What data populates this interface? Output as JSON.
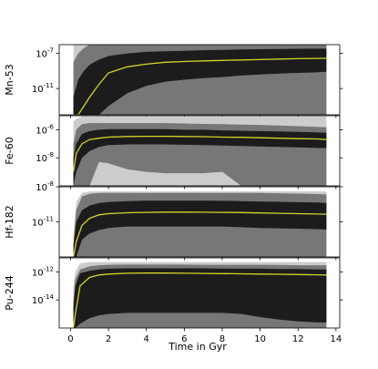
{
  "figure": {
    "xlabel": "Time in Gyr",
    "x_ticks": [
      "0",
      "2",
      "4",
      "6",
      "8",
      "10",
      "12",
      "14"
    ]
  },
  "colors": {
    "band_outer": "#cccccc",
    "band_mid": "#777777",
    "band_inner": "#1c1c1c",
    "median": "#d4d42a"
  },
  "chart_data": [
    {
      "type": "area",
      "title": "",
      "ylabel": "Mn-53",
      "yscale": "log",
      "ylim": [
        1e-14,
        1e-06
      ],
      "xlim": [
        -0.6,
        14.2
      ],
      "y_tick_labels": [
        "10^-7",
        "10^-11"
      ],
      "x": [
        0.15,
        0.4,
        0.7,
        1,
        1.5,
        2,
        3,
        4,
        5,
        6,
        7,
        8,
        9,
        10,
        11,
        12,
        13,
        13.5
      ],
      "series": [
        {
          "band": "outer",
          "lower": [
            1e-14,
            1e-14,
            1e-14,
            1e-14,
            1e-14,
            1e-14,
            1e-14,
            1e-14,
            1e-14,
            1e-14,
            1e-14,
            1e-14,
            1e-14,
            1e-14,
            1e-14,
            1e-14,
            1e-14,
            1e-14
          ],
          "upper": [
            3e-06,
            3e-06,
            3e-06,
            3e-06,
            3e-06,
            3e-06,
            3e-06,
            3e-06,
            3e-06,
            3e-06,
            3e-06,
            3e-06,
            3e-06,
            3e-06,
            3e-06,
            3e-06,
            3e-06,
            3e-06
          ]
        },
        {
          "band": "mid",
          "lower": [
            1e-14,
            1e-14,
            1e-14,
            1e-14,
            1e-14,
            1e-14,
            1e-14,
            1e-14,
            1e-14,
            1e-14,
            1e-14,
            1e-14,
            1e-14,
            1e-14,
            1e-14,
            1e-14,
            1e-14,
            1e-14
          ],
          "upper": [
            1e-08,
            1e-07,
            4e-07,
            1e-06,
            2e-06,
            2.5e-06,
            3e-06,
            3e-06,
            3e-06,
            3e-06,
            3e-06,
            3e-06,
            3e-06,
            3e-06,
            3e-06,
            3e-06,
            3e-06,
            3e-06
          ]
        },
        {
          "band": "inner",
          "lower": [
            1e-14,
            1e-14,
            1e-14,
            1e-14,
            1e-14,
            1e-13,
            3e-12,
            2e-11,
            6e-11,
            1e-10,
            1.5e-10,
            2e-10,
            3e-10,
            4e-10,
            5e-10,
            6e-10,
            7e-10,
            8e-10
          ],
          "upper": [
            1e-12,
            1e-10,
            1e-09,
            5e-09,
            2e-08,
            5e-08,
            1e-07,
            1.5e-07,
            1.8e-07,
            2e-07,
            2.3e-07,
            2.5e-07,
            2.8e-07,
            3e-07,
            3.2e-07,
            3.4e-07,
            3.5e-07,
            3.5e-07
          ]
        },
        {
          "band": "median",
          "values": [
            1e-15,
            1e-14,
            1e-13,
            1e-12,
            3e-11,
            6e-10,
            3e-09,
            6e-09,
            1e-08,
            1.2e-08,
            1.4e-08,
            1.6e-08,
            1.8e-08,
            2e-08,
            2.3e-08,
            2.5e-08,
            2.7e-08,
            2.8e-08
          ]
        }
      ]
    },
    {
      "type": "area",
      "title": "",
      "ylabel": "Fe-60",
      "yscale": "log",
      "ylim": [
        1e-10,
        1e-05
      ],
      "xlim": [
        -0.6,
        14.2
      ],
      "y_tick_labels": [
        "10^-6",
        "10^-8"
      ],
      "x": [
        0.15,
        0.3,
        0.6,
        1,
        1.5,
        2,
        3,
        4,
        5,
        6,
        7,
        8,
        9,
        10,
        11,
        12,
        13,
        13.5
      ],
      "series": [
        {
          "band": "outer",
          "lower": [
            1e-10,
            1e-10,
            1e-10,
            1e-10,
            1e-10,
            1e-10,
            1e-10,
            1e-10,
            1e-10,
            1e-10,
            1e-10,
            1e-10,
            1e-10,
            1e-10,
            1e-10,
            1e-10,
            1e-10,
            1e-10
          ],
          "upper": [
            4e-06,
            6e-06,
            9e-06,
            9e-06,
            9e-06,
            9e-06,
            9e-06,
            9e-06,
            9e-06,
            9e-06,
            9e-06,
            9e-06,
            9e-06,
            9e-06,
            9e-06,
            9e-06,
            9e-06,
            9e-06
          ]
        },
        {
          "band": "mid",
          "lower": [
            1e-10,
            1e-10,
            1e-10,
            1e-10,
            5e-09,
            4e-09,
            1.5e-09,
            1e-09,
            8e-10,
            8e-10,
            8e-10,
            1e-09,
            1e-10,
            1e-10,
            1e-10,
            1e-10,
            1e-10,
            1e-10
          ],
          "upper": [
            1e-07,
            1e-06,
            2.5e-06,
            3e-06,
            3e-06,
            3e-06,
            3e-06,
            3e-06,
            3e-06,
            2.8e-06,
            2.6e-06,
            2.5e-06,
            2.3e-06,
            2.2e-06,
            2e-06,
            1.8e-06,
            1.6e-06,
            1.5e-06
          ]
        },
        {
          "band": "inner",
          "lower": [
            1e-10,
            1e-09,
            1e-08,
            3e-08,
            6e-08,
            8e-08,
            9e-08,
            9e-08,
            9e-08,
            8.5e-08,
            8e-08,
            7.5e-08,
            7e-08,
            6.5e-08,
            6e-08,
            5.5e-08,
            5e-08,
            5e-08
          ],
          "upper": [
            1e-08,
            1e-07,
            5e-07,
            8e-07,
            1e-06,
            1.1e-06,
            1.1e-06,
            1.1e-06,
            1.1e-06,
            1e-06,
            1e-06,
            9e-07,
            8.5e-07,
            8e-07,
            7.5e-07,
            7e-07,
            6.5e-07,
            6e-07
          ]
        },
        {
          "band": "median",
          "values": [
            1e-09,
            2e-08,
            1e-07,
            2e-07,
            2.5e-07,
            3e-07,
            3.3e-07,
            3.4e-07,
            3.4e-07,
            3.3e-07,
            3.2e-07,
            3e-07,
            2.9e-07,
            2.7e-07,
            2.5e-07,
            2.3e-07,
            2.2e-07,
            2e-07
          ]
        }
      ]
    },
    {
      "type": "area",
      "title": "",
      "ylabel": "Hf-182",
      "yscale": "log",
      "ylim": [
        1e-14,
        1e-08
      ],
      "xlim": [
        -0.6,
        14.2
      ],
      "y_tick_labels": [
        "10^-8",
        "10^-11"
      ],
      "x": [
        0.15,
        0.3,
        0.6,
        1,
        1.5,
        2,
        3,
        4,
        5,
        6,
        7,
        8,
        9,
        10,
        11,
        12,
        13,
        13.5
      ],
      "series": [
        {
          "band": "outer",
          "lower": [
            1e-14,
            1e-14,
            1e-14,
            1e-14,
            1e-14,
            1e-14,
            1e-14,
            1e-14,
            1e-14,
            1e-14,
            1e-14,
            1e-14,
            1e-14,
            1e-14,
            1e-14,
            1e-14,
            1e-14,
            1e-14
          ],
          "upper": [
            1e-12,
            5e-10,
            3e-09,
            4e-09,
            4e-09,
            4e-09,
            4e-09,
            4e-09,
            4e-09,
            4e-09,
            4e-09,
            4e-09,
            4e-09,
            4e-09,
            4e-09,
            4e-09,
            4e-09,
            4e-09
          ]
        },
        {
          "band": "mid",
          "lower": [
            1e-14,
            1e-14,
            1e-14,
            1e-14,
            1e-14,
            1e-14,
            1e-14,
            1e-14,
            1e-14,
            1e-14,
            1e-14,
            1e-14,
            1e-14,
            1e-14,
            1e-14,
            1e-14,
            1e-14,
            1e-14
          ],
          "upper": [
            1e-13,
            1e-10,
            1.5e-09,
            2.5e-09,
            3e-09,
            3e-09,
            3e-09,
            3e-09,
            3e-09,
            3e-09,
            3e-09,
            3e-09,
            3e-09,
            3e-09,
            2.8e-09,
            2.6e-09,
            2.4e-09,
            2.2e-09
          ]
        },
        {
          "band": "inner",
          "lower": [
            1e-14,
            1e-14,
            3e-13,
            1e-12,
            2e-12,
            3e-12,
            4e-12,
            4e-12,
            4e-12,
            4e-12,
            4e-12,
            4e-12,
            3.5e-12,
            3e-12,
            2.8e-12,
            2.6e-12,
            2.4e-12,
            2.2e-12
          ],
          "upper": [
            1e-13,
            1e-11,
            1e-10,
            2.5e-10,
            4e-10,
            5e-10,
            6e-10,
            6.5e-10,
            6.5e-10,
            6.5e-10,
            6.5e-10,
            6.3e-10,
            6e-10,
            5.6e-10,
            5.2e-10,
            4.8e-10,
            4.5e-10,
            4.2e-10
          ]
        },
        {
          "band": "median",
          "values": [
            1e-14,
            2e-13,
            5e-12,
            2e-11,
            4e-11,
            5e-11,
            6e-11,
            6.5e-11,
            6.8e-11,
            6.8e-11,
            6.7e-11,
            6.5e-11,
            6.2e-11,
            5.8e-11,
            5.4e-11,
            5e-11,
            4.7e-11,
            4.5e-11
          ]
        }
      ]
    },
    {
      "type": "area",
      "title": "",
      "ylabel": "Pu-244",
      "yscale": "log",
      "ylim": [
        1e-16,
        1e-11
      ],
      "xlim": [
        -0.6,
        14.2
      ],
      "y_tick_labels": [
        "10^-12",
        "10^-14"
      ],
      "x": [
        0.15,
        0.25,
        0.5,
        1,
        1.5,
        2,
        3,
        4,
        5,
        6,
        7,
        8,
        9,
        10,
        11,
        12,
        13,
        13.5
      ],
      "series": [
        {
          "band": "outer",
          "lower": [
            1e-16,
            1e-16,
            1e-16,
            1e-16,
            1e-16,
            1e-16,
            1e-16,
            1e-16,
            1e-16,
            1e-16,
            1e-16,
            1e-16,
            1e-16,
            1e-16,
            1e-16,
            1e-16,
            1e-16,
            1e-16
          ],
          "upper": [
            1e-13,
            1e-12,
            4e-12,
            5e-12,
            5e-12,
            5e-12,
            5e-12,
            5e-12,
            5e-12,
            5e-12,
            5e-12,
            5e-12,
            5e-12,
            5e-12,
            5e-12,
            5e-12,
            5e-12,
            5e-12
          ]
        },
        {
          "band": "mid",
          "lower": [
            1e-16,
            1e-16,
            1e-16,
            1e-16,
            1e-16,
            1e-16,
            1e-16,
            1e-16,
            1e-16,
            1e-16,
            1e-16,
            1e-16,
            1e-16,
            1e-16,
            1e-16,
            1e-16,
            1e-16,
            1e-16
          ],
          "upper": [
            1e-14,
            3e-13,
            1.5e-12,
            2.5e-12,
            3e-12,
            3.2e-12,
            3.3e-12,
            3.3e-12,
            3.3e-12,
            3.3e-12,
            3.2e-12,
            3.2e-12,
            3.2e-12,
            3.2e-12,
            3.1e-12,
            3e-12,
            3e-12,
            3e-12
          ]
        },
        {
          "band": "inner",
          "lower": [
            1e-16,
            1e-16,
            2e-16,
            5e-16,
            8e-16,
            1e-15,
            1.2e-15,
            1.2e-15,
            1.2e-15,
            1.2e-15,
            1.2e-15,
            1.2e-15,
            1e-15,
            6e-16,
            4e-16,
            3e-16,
            2.5e-16,
            2.5e-16
          ],
          "upper": [
            3e-15,
            1e-13,
            8e-13,
            1.2e-12,
            1.5e-12,
            1.7e-12,
            1.8e-12,
            1.8e-12,
            1.8e-12,
            1.8e-12,
            1.8e-12,
            1.7e-12,
            1.7e-12,
            1.7e-12,
            1.6e-12,
            1.6e-12,
            1.5e-12,
            1.5e-12
          ]
        },
        {
          "band": "median",
          "values": [
            1e-16,
            1e-15,
            1e-13,
            4e-13,
            6e-13,
            7e-13,
            8e-13,
            8.2e-13,
            8.2e-13,
            8e-13,
            7.8e-13,
            7.5e-13,
            7.3e-13,
            7e-13,
            6.8e-13,
            6.5e-13,
            6.2e-13,
            6e-13
          ]
        }
      ]
    }
  ]
}
